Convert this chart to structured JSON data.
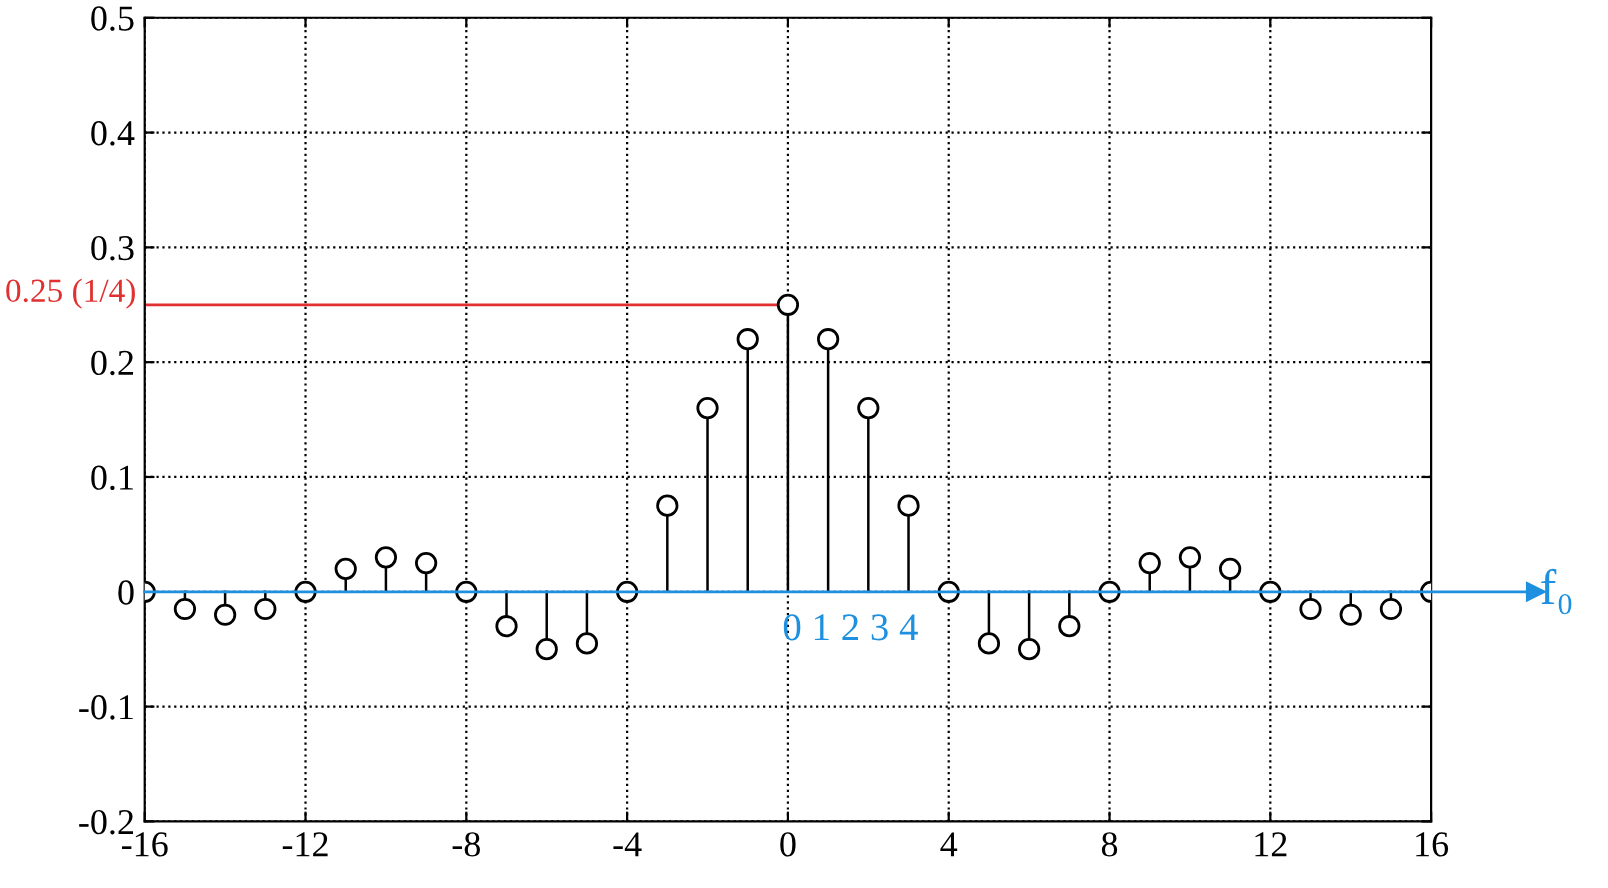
{
  "chart_data": {
    "type": "lollipop",
    "x": [
      -16,
      -15,
      -14,
      -13,
      -12,
      -11,
      -10,
      -9,
      -8,
      -7,
      -6,
      -5,
      -4,
      -3,
      -2,
      -1,
      0,
      1,
      2,
      3,
      4,
      5,
      6,
      7,
      8,
      9,
      10,
      11,
      12,
      13,
      14,
      15,
      16
    ],
    "values": [
      0,
      -0.015,
      -0.02,
      -0.015,
      0,
      0.02,
      0.03,
      0.025,
      0,
      -0.03,
      -0.05,
      -0.045,
      0,
      0.075,
      0.16,
      0.22,
      0.25,
      0.22,
      0.16,
      0.075,
      0,
      -0.045,
      -0.05,
      -0.03,
      0,
      0.025,
      0.03,
      0.02,
      0,
      -0.015,
      -0.02,
      -0.015,
      0
    ],
    "color": "#000000",
    "marker": "circle",
    "xlim": [
      -16,
      16
    ],
    "xticks": [
      -16,
      -12,
      -8,
      -4,
      0,
      4,
      8,
      12,
      16
    ],
    "ylim": [
      -0.2,
      0.5
    ],
    "yticks": [
      -0.2,
      -0.1,
      0,
      0.1,
      0.2,
      0.3,
      0.4,
      0.5
    ],
    "grid": true,
    "line_style": "dotted",
    "ref_lines": [
      {
        "axis": "y",
        "value": 0.25,
        "label": "0.25 (1/4)",
        "color": "#e03030"
      },
      {
        "axis": "y",
        "value": 0,
        "label": "f₀",
        "color": "#1e90e0"
      }
    ],
    "annotations": [
      "0 1 2 3 4"
    ]
  }
}
